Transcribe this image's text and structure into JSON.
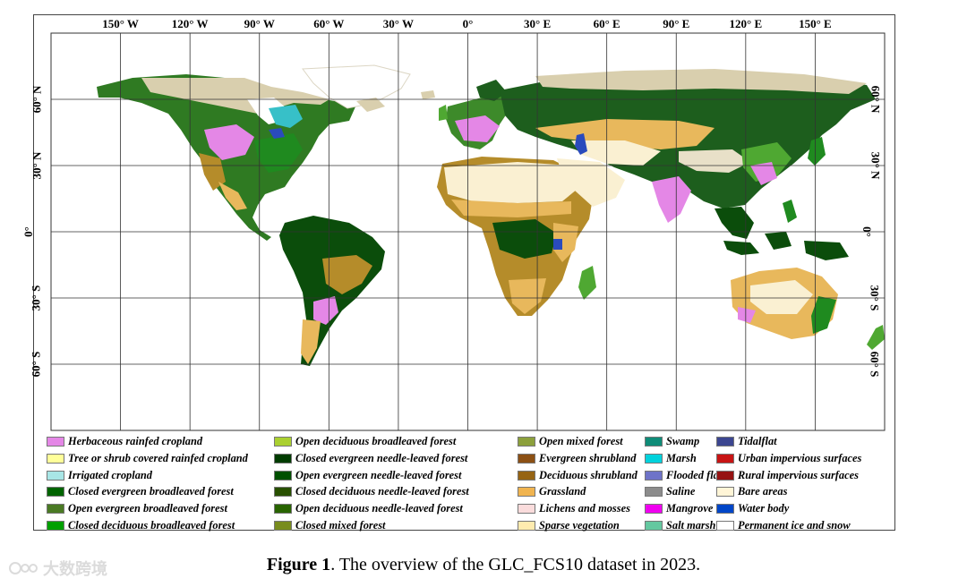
{
  "map": {
    "lon_labels": [
      "150° W",
      "120° W",
      "90° W",
      "60° W",
      "30° W",
      "0°",
      "30° E",
      "60° E",
      "90° E",
      "120° E",
      "150° E"
    ],
    "lat_labels": [
      "60° N",
      "30° N",
      "0°",
      "30° S",
      "60° S"
    ],
    "extent": {
      "lon": [
        -180,
        180
      ],
      "lat": [
        -90,
        90
      ]
    },
    "graticule_step_deg": 30,
    "colors": {
      "ocean": "#ffffff",
      "grid": "#333333",
      "ice": "#ffffff",
      "tundra": "#e8e0c8",
      "boreal": "#1d5e1d",
      "temperate": "#4fa832",
      "cropland": "#e487e6",
      "desert": "#faf0d2",
      "savanna": "#b58c2a",
      "grassland": "#e8b85c",
      "rainforest": "#0b4d0b",
      "marsh": "#37c0c8",
      "water": "#2a4bbd"
    }
  },
  "legend": [
    {
      "label": "Herbaceous rainfed cropland",
      "color": "#e487e6"
    },
    {
      "label": "Tree or shrub covered rainfed cropland",
      "color": "#ffff99"
    },
    {
      "label": "Irrigated cropland",
      "color": "#a8e6e6"
    },
    {
      "label": "Closed evergreen broadleaved forest",
      "color": "#006400"
    },
    {
      "label": "Open evergreen broadleaved forest",
      "color": "#4a7a24"
    },
    {
      "label": "Closed deciduous broadleaved forest",
      "color": "#00a000"
    },
    {
      "label": "Open deciduous broadleaved forest",
      "color": "#aad030"
    },
    {
      "label": "Closed evergreen needle-leaved forest",
      "color": "#003c00"
    },
    {
      "label": "Open evergreen needle-leaved forest",
      "color": "#005000"
    },
    {
      "label": "Closed deciduous needle-leaved forest",
      "color": "#285000"
    },
    {
      "label": "Open deciduous needle-leaved forest",
      "color": "#286400"
    },
    {
      "label": "Closed mixed forest",
      "color": "#788c1e"
    },
    {
      "label": "Open mixed forest",
      "color": "#8ca03c"
    },
    {
      "label": "Evergreen shrubland",
      "color": "#8c5014"
    },
    {
      "label": "Deciduous shrubland",
      "color": "#966414"
    },
    {
      "label": "Grassland",
      "color": "#f0b450"
    },
    {
      "label": "Lichens and mosses",
      "color": "#fadcdc"
    },
    {
      "label": "Sparse vegetation",
      "color": "#ffebaf"
    },
    {
      "label": "Swamp",
      "color": "#0f8c78"
    },
    {
      "label": "Marsh",
      "color": "#00d2dc"
    },
    {
      "label": "Flooded flat",
      "color": "#6e73c8"
    },
    {
      "label": "Saline",
      "color": "#8c8c8c"
    },
    {
      "label": "Mangrove",
      "color": "#f000f0"
    },
    {
      "label": "Salt marsh",
      "color": "#64c8a0"
    },
    {
      "label": "Tidalflat",
      "color": "#3c4690"
    },
    {
      "label": "Urban impervious surfaces",
      "color": "#c81414"
    },
    {
      "label": "Rural impervious surfaces",
      "color": "#961414"
    },
    {
      "label": "Bare areas",
      "color": "#fff5d7"
    },
    {
      "label": "Water body",
      "color": "#0046c8"
    },
    {
      "label": "Permanent ice and snow",
      "color": "#ffffff"
    }
  ],
  "caption": {
    "prefix": "Figure 1",
    "text": ". The overview of the GLC_FCS10 dataset in 2023."
  },
  "watermark": {
    "text": "大数跨境"
  }
}
